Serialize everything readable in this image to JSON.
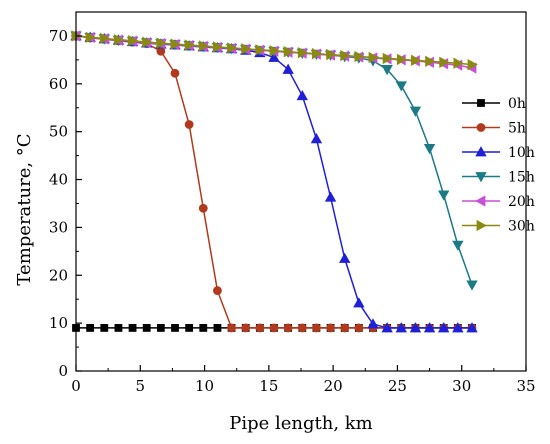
{
  "chart_data": {
    "type": "line",
    "xlabel": "Pipe length, km",
    "ylabel": "Temperature, °C",
    "xlim": [
      0,
      35
    ],
    "ylim": [
      0,
      75
    ],
    "xticks": [
      0,
      5,
      10,
      15,
      20,
      25,
      30,
      35
    ],
    "yticks": [
      0,
      10,
      20,
      30,
      40,
      50,
      60,
      70
    ],
    "grid": false,
    "legend_position": "right",
    "series": [
      {
        "name": "0h",
        "color": "#000000",
        "marker": "square",
        "x": [
          0,
          1.1,
          2.2,
          3.3,
          4.4,
          5.5,
          6.6,
          7.7,
          8.8,
          9.9,
          11,
          12.1,
          13.2,
          14.3,
          15.4,
          16.5,
          17.6,
          18.7,
          19.8,
          20.9,
          22,
          23.1,
          24.2,
          25.3,
          26.4,
          27.5,
          28.6,
          29.7,
          30.8
        ],
        "y": [
          9,
          9,
          9,
          9,
          9,
          9,
          9,
          9,
          9,
          9,
          9,
          9,
          9,
          9,
          9,
          9,
          9,
          9,
          9,
          9,
          9,
          9,
          9,
          9,
          9,
          9,
          9,
          9,
          9
        ]
      },
      {
        "name": "5h",
        "color": "#b03a1e",
        "marker": "circle",
        "x": [
          0,
          1.1,
          2.2,
          3.3,
          4.4,
          5.5,
          6.6,
          7.7,
          8.8,
          9.9,
          11,
          12.1,
          13.2,
          14.3,
          15.4,
          16.5,
          17.6,
          18.7,
          19.8,
          20.9,
          22,
          23.1,
          24.2,
          25.3,
          26.4,
          27.5,
          28.6,
          29.7,
          30.8
        ],
        "y": [
          70,
          69.6,
          69.3,
          69.0,
          68.7,
          68.4,
          66.8,
          62.2,
          51.5,
          34.0,
          16.8,
          9,
          9,
          9,
          9,
          9,
          9,
          9,
          9,
          9,
          9,
          9,
          9,
          9,
          9,
          9,
          9,
          9,
          9
        ]
      },
      {
        "name": "10h",
        "color": "#1f1fd6",
        "marker": "triangle-up",
        "x": [
          0,
          1.1,
          2.2,
          3.3,
          4.4,
          5.5,
          6.6,
          7.7,
          8.8,
          9.9,
          11,
          12.1,
          13.2,
          14.3,
          15.4,
          16.5,
          17.6,
          18.7,
          19.8,
          20.9,
          22,
          23.1,
          24.2,
          25.3,
          26.4,
          27.5,
          28.6,
          29.7,
          30.8
        ],
        "y": [
          70,
          69.7,
          69.4,
          69.1,
          68.8,
          68.5,
          68.3,
          68.1,
          67.9,
          67.7,
          67.5,
          67.3,
          67.0,
          66.5,
          65.5,
          63.0,
          57.5,
          48.5,
          36.3,
          23.5,
          14.2,
          9.8,
          9,
          9,
          9,
          9,
          9,
          9,
          9
        ]
      },
      {
        "name": "15h",
        "color": "#1c7a86",
        "marker": "triangle-down",
        "x": [
          0,
          1.1,
          2.2,
          3.3,
          4.4,
          5.5,
          6.6,
          7.7,
          8.8,
          9.9,
          11,
          12.1,
          13.2,
          14.3,
          15.4,
          16.5,
          17.6,
          18.7,
          19.8,
          20.9,
          22,
          23.1,
          24.2,
          25.3,
          26.4,
          27.5,
          28.6,
          29.7,
          30.8
        ],
        "y": [
          70,
          69.7,
          69.4,
          69.1,
          68.9,
          68.6,
          68.4,
          68.2,
          68.0,
          67.8,
          67.6,
          67.4,
          67.2,
          67.0,
          66.8,
          66.6,
          66.4,
          66.2,
          66.0,
          65.7,
          65.4,
          64.8,
          63.0,
          59.6,
          54.3,
          46.5,
          36.8,
          26.3,
          18.0
        ]
      },
      {
        "name": "20h",
        "color": "#c84fd6",
        "marker": "triangle-left",
        "x": [
          0,
          1.1,
          2.2,
          3.3,
          4.4,
          5.5,
          6.6,
          7.7,
          8.8,
          9.9,
          11,
          12.1,
          13.2,
          14.3,
          15.4,
          16.5,
          17.6,
          18.7,
          19.8,
          20.9,
          22,
          23.1,
          24.2,
          25.3,
          26.4,
          27.5,
          28.6,
          29.7,
          30.8
        ],
        "y": [
          70,
          69.7,
          69.4,
          69.1,
          68.9,
          68.6,
          68.4,
          68.2,
          68.0,
          67.8,
          67.6,
          67.4,
          67.2,
          67.0,
          66.8,
          66.6,
          66.4,
          66.2,
          66.0,
          65.8,
          65.6,
          65.4,
          65.2,
          65.0,
          64.8,
          64.5,
          64.2,
          63.9,
          63.3
        ]
      },
      {
        "name": "30h",
        "color": "#8a8a10",
        "marker": "triangle-right",
        "x": [
          0,
          1.1,
          2.2,
          3.3,
          4.4,
          5.5,
          6.6,
          7.7,
          8.8,
          9.9,
          11,
          12.1,
          13.2,
          14.3,
          15.4,
          16.5,
          17.6,
          18.7,
          19.8,
          20.9,
          22,
          23.1,
          24.2,
          25.3,
          26.4,
          27.5,
          28.6,
          29.7,
          30.8
        ],
        "y": [
          70,
          69.7,
          69.5,
          69.2,
          69.0,
          68.7,
          68.5,
          68.3,
          68.1,
          67.9,
          67.7,
          67.5,
          67.3,
          67.1,
          66.9,
          66.7,
          66.5,
          66.3,
          66.1,
          65.9,
          65.7,
          65.5,
          65.3,
          65.1,
          64.9,
          64.7,
          64.5,
          64.3,
          64.0
        ]
      }
    ]
  }
}
